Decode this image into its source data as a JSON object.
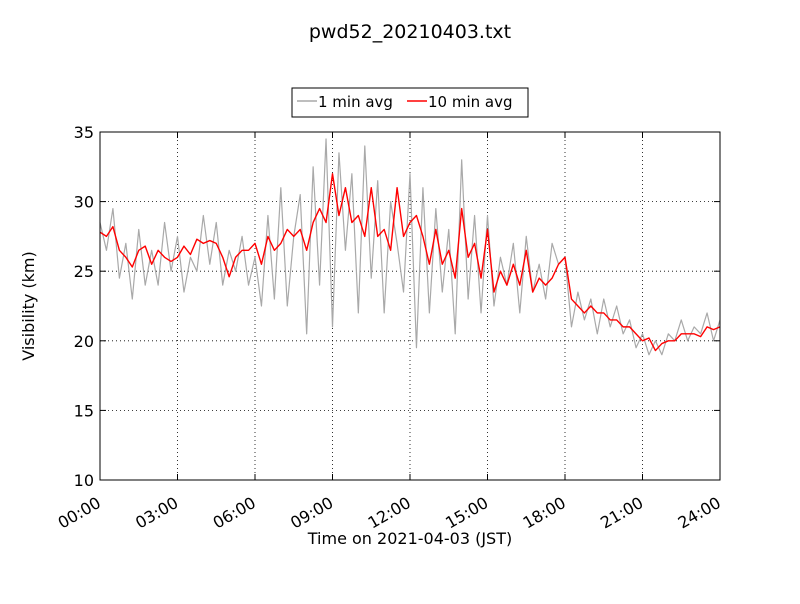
{
  "chart_data": {
    "type": "line",
    "title": "pwd52_20210403.txt",
    "xlabel": "Time on 2021-04-03 (JST)",
    "ylabel": "Visibility (km)",
    "x_unit": "hour",
    "xlim": [
      0,
      24
    ],
    "ylim": [
      10,
      35
    ],
    "x_ticks": [
      0,
      3,
      6,
      9,
      12,
      15,
      18,
      21,
      24
    ],
    "x_tick_labels": [
      "00:00",
      "03:00",
      "06:00",
      "09:00",
      "12:00",
      "15:00",
      "18:00",
      "21:00",
      "24:00"
    ],
    "y_ticks": [
      10,
      15,
      20,
      25,
      30,
      35
    ],
    "y_tick_labels": [
      "10",
      "15",
      "20",
      "25",
      "30",
      "35"
    ],
    "grid": true,
    "legend": "top-center",
    "series": [
      {
        "name": "1 min avg",
        "color": "#a9a9a9",
        "x": [
          0.0,
          0.25,
          0.5,
          0.75,
          1.0,
          1.25,
          1.5,
          1.75,
          2.0,
          2.25,
          2.5,
          2.75,
          3.0,
          3.25,
          3.5,
          3.75,
          4.0,
          4.25,
          4.5,
          4.75,
          5.0,
          5.25,
          5.5,
          5.75,
          6.0,
          6.25,
          6.5,
          6.75,
          7.0,
          7.25,
          7.5,
          7.75,
          8.0,
          8.25,
          8.5,
          8.75,
          9.0,
          9.25,
          9.5,
          9.75,
          10.0,
          10.25,
          10.5,
          10.75,
          11.0,
          11.25,
          11.5,
          11.75,
          12.0,
          12.25,
          12.5,
          12.75,
          13.0,
          13.25,
          13.5,
          13.75,
          14.0,
          14.25,
          14.5,
          14.75,
          15.0,
          15.25,
          15.5,
          15.75,
          16.0,
          16.25,
          16.5,
          16.75,
          17.0,
          17.25,
          17.5,
          17.75,
          18.0,
          18.25,
          18.5,
          18.75,
          19.0,
          19.25,
          19.5,
          19.75,
          20.0,
          20.25,
          20.5,
          20.75,
          21.0,
          21.25,
          21.5,
          21.75,
          22.0,
          22.25,
          22.5,
          22.75,
          23.0,
          23.25,
          23.5,
          23.75,
          24.0
        ],
        "values": [
          28.5,
          26.5,
          29.5,
          24.5,
          27.0,
          23.0,
          28.0,
          24.0,
          26.5,
          24.0,
          28.5,
          25.0,
          27.5,
          23.5,
          26.0,
          25.0,
          29.0,
          25.5,
          28.5,
          24.0,
          26.5,
          25.0,
          27.5,
          24.0,
          26.0,
          22.5,
          29.0,
          23.0,
          31.0,
          22.5,
          27.5,
          30.5,
          20.5,
          32.5,
          24.0,
          34.5,
          21.0,
          33.5,
          26.5,
          32.0,
          22.0,
          34.0,
          24.5,
          31.5,
          22.0,
          30.0,
          27.0,
          23.5,
          32.0,
          19.5,
          31.0,
          22.0,
          29.5,
          23.5,
          28.0,
          20.5,
          33.0,
          23.0,
          29.0,
          22.0,
          29.0,
          22.5,
          26.0,
          24.0,
          27.0,
          22.0,
          27.5,
          23.5,
          25.5,
          23.0,
          27.0,
          25.5,
          26.0,
          21.0,
          23.5,
          21.5,
          23.0,
          20.5,
          23.0,
          21.0,
          22.5,
          20.5,
          21.5,
          19.5,
          20.5,
          19.0,
          20.0,
          19.0,
          20.5,
          20.0,
          21.5,
          20.0,
          21.0,
          20.5,
          22.0,
          20.0,
          21.5
        ]
      },
      {
        "name": "10 min avg",
        "color": "#ff0000",
        "x": [
          0.0,
          0.25,
          0.5,
          0.75,
          1.0,
          1.25,
          1.5,
          1.75,
          2.0,
          2.25,
          2.5,
          2.75,
          3.0,
          3.25,
          3.5,
          3.75,
          4.0,
          4.25,
          4.5,
          4.75,
          5.0,
          5.25,
          5.5,
          5.75,
          6.0,
          6.25,
          6.5,
          6.75,
          7.0,
          7.25,
          7.5,
          7.75,
          8.0,
          8.25,
          8.5,
          8.75,
          9.0,
          9.25,
          9.5,
          9.75,
          10.0,
          10.25,
          10.5,
          10.75,
          11.0,
          11.25,
          11.5,
          11.75,
          12.0,
          12.25,
          12.5,
          12.75,
          13.0,
          13.25,
          13.5,
          13.75,
          14.0,
          14.25,
          14.5,
          14.75,
          15.0,
          15.25,
          15.5,
          15.75,
          16.0,
          16.25,
          16.5,
          16.75,
          17.0,
          17.25,
          17.5,
          17.75,
          18.0,
          18.25,
          18.5,
          18.75,
          19.0,
          19.25,
          19.5,
          19.75,
          20.0,
          20.25,
          20.5,
          20.75,
          21.0,
          21.25,
          21.5,
          21.75,
          22.0,
          22.25,
          22.5,
          22.75,
          23.0,
          23.25,
          23.5,
          23.75,
          24.0
        ],
        "values": [
          27.8,
          27.5,
          28.2,
          26.5,
          26.0,
          25.3,
          26.5,
          26.8,
          25.5,
          26.5,
          26.0,
          25.7,
          26.0,
          26.8,
          26.2,
          27.3,
          27.0,
          27.2,
          27.0,
          26.0,
          24.6,
          26.0,
          26.5,
          26.5,
          27.0,
          25.5,
          27.5,
          26.5,
          27.0,
          28.0,
          27.5,
          28.0,
          26.5,
          28.5,
          29.5,
          28.5,
          32.0,
          29.0,
          31.0,
          28.5,
          29.0,
          27.5,
          31.0,
          27.5,
          28.0,
          26.5,
          31.0,
          27.5,
          28.5,
          29.0,
          27.5,
          25.5,
          28.0,
          25.5,
          26.5,
          24.5,
          29.5,
          26.0,
          27.0,
          24.5,
          28.0,
          23.5,
          25.0,
          24.0,
          25.5,
          24.0,
          26.5,
          23.5,
          24.5,
          24.0,
          24.5,
          25.5,
          26.0,
          23.0,
          22.5,
          22.0,
          22.5,
          22.0,
          22.0,
          21.5,
          21.5,
          21.0,
          21.0,
          20.5,
          20.0,
          20.2,
          19.3,
          19.8,
          20.0,
          20.0,
          20.5,
          20.5,
          20.5,
          20.3,
          21.0,
          20.8,
          21.0
        ]
      }
    ]
  }
}
